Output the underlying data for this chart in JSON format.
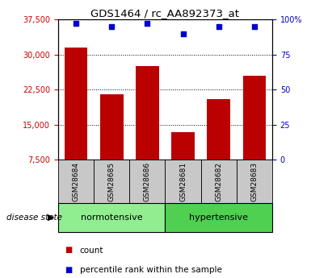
{
  "title": "GDS1464 / rc_AA892373_at",
  "samples": [
    "GSM28684",
    "GSM28685",
    "GSM28686",
    "GSM28681",
    "GSM28682",
    "GSM28683"
  ],
  "counts": [
    31500,
    21500,
    27500,
    13500,
    20500,
    25500
  ],
  "percentiles": [
    97,
    95,
    97,
    90,
    95,
    95
  ],
  "ylim_left": [
    7500,
    37500
  ],
  "ylim_right": [
    0,
    100
  ],
  "yticks_left": [
    7500,
    15000,
    22500,
    30000,
    37500
  ],
  "yticks_right": [
    0,
    25,
    50,
    75,
    100
  ],
  "groups": [
    {
      "label": "normotensive",
      "color": "#90ee90"
    },
    {
      "label": "hypertensive",
      "color": "#50d050"
    }
  ],
  "bar_color": "#bb0000",
  "marker_color": "#0000cc",
  "bar_width": 0.65,
  "tick_label_color_left": "#cc0000",
  "tick_label_color_right": "#0000cc",
  "background_plot": "#ffffff",
  "background_xtick": "#c8c8c8",
  "disease_state_label": "disease state",
  "arrow": "▶",
  "legend_count": "count",
  "legend_percentile": "percentile rank within the sample"
}
